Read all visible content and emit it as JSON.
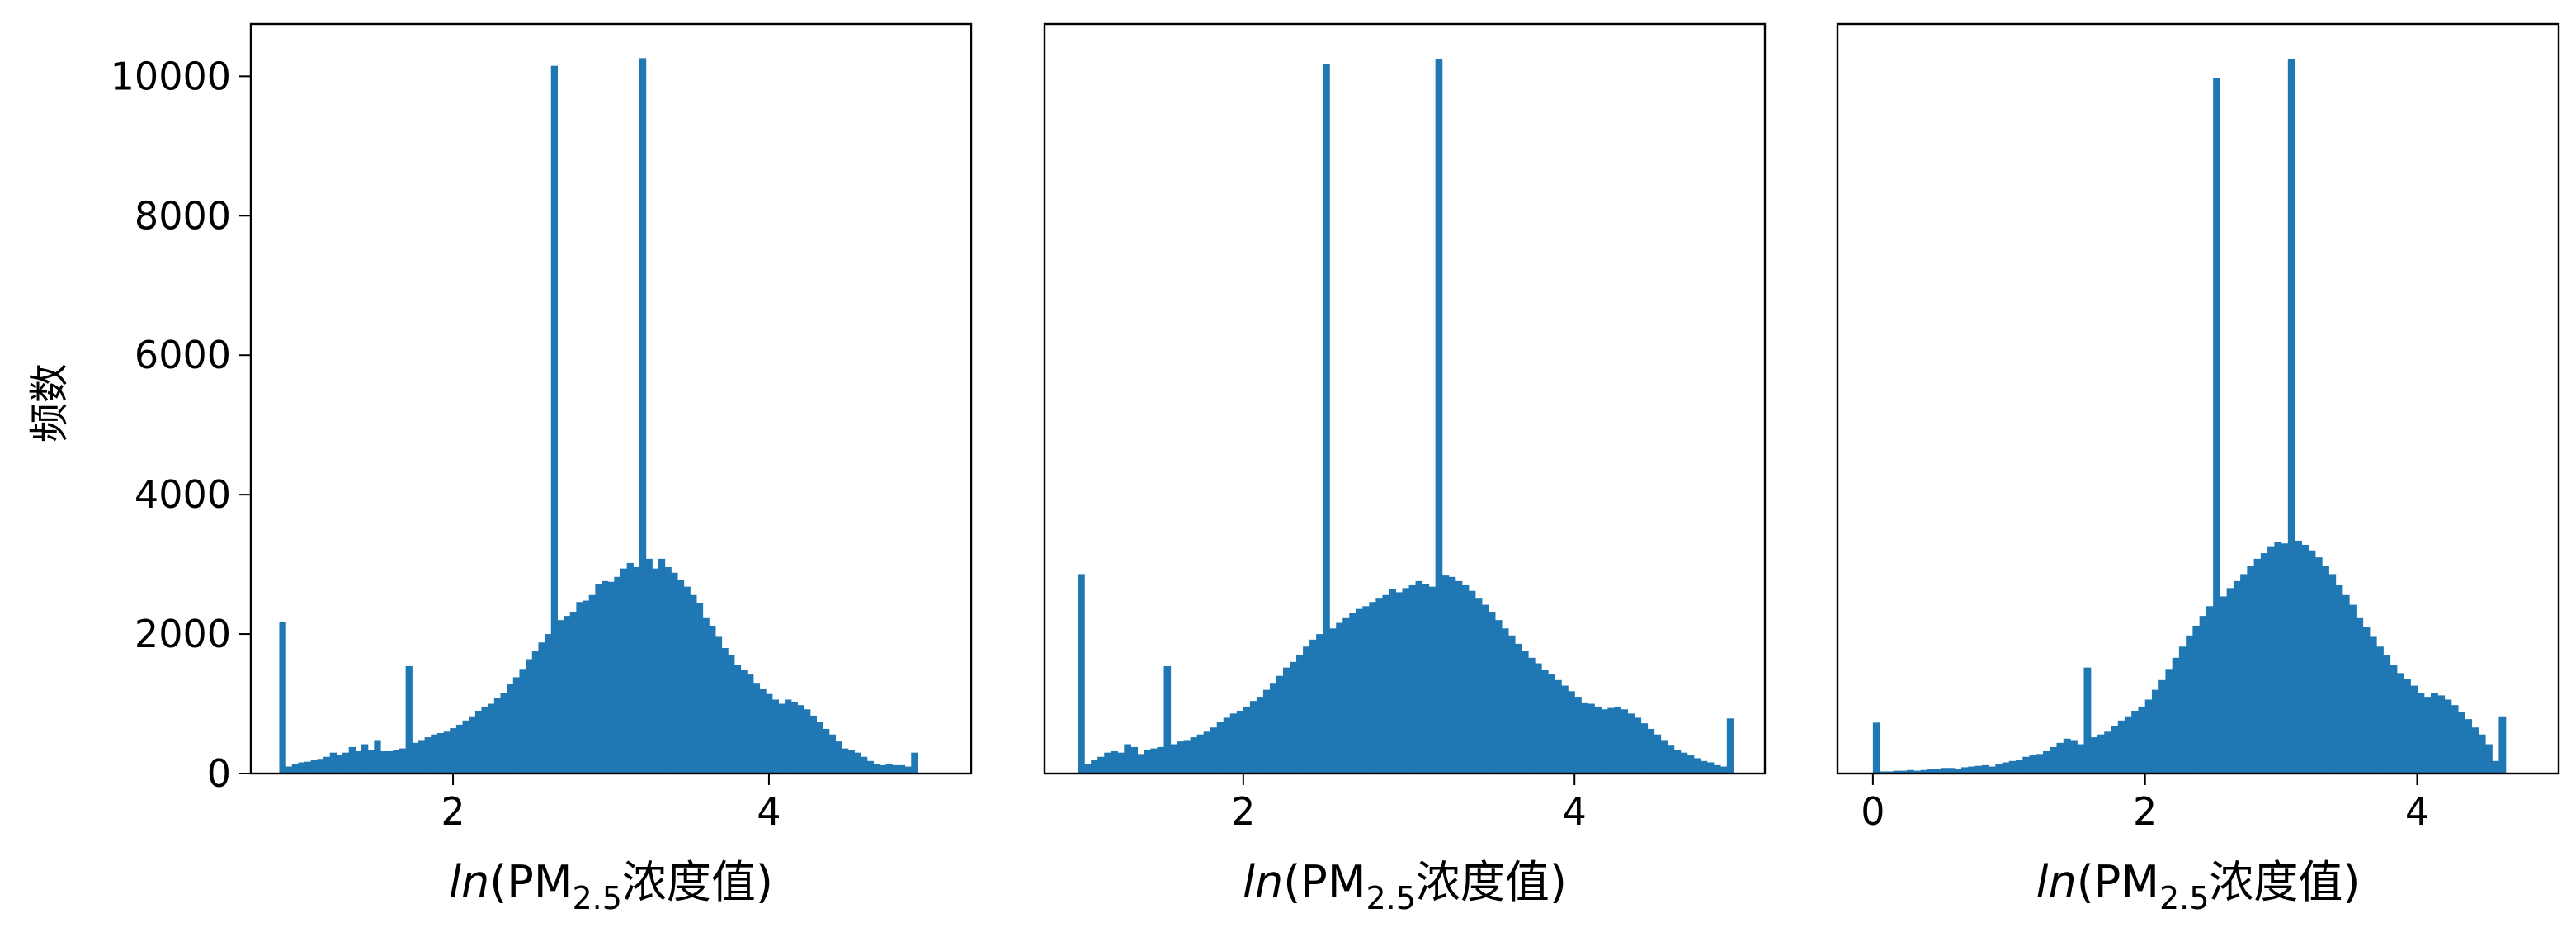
{
  "figure": {
    "ylabel": "频数",
    "bar_color": "#1f77b4"
  },
  "chart_data": [
    {
      "type": "bar",
      "title": "",
      "xlabel": {
        "prefix": "ln",
        "main": "(PM",
        "sub": "2.5",
        "suffix": "浓度值)"
      },
      "ylabel": "频数",
      "xlim": [
        0.72,
        5.28
      ],
      "ylim": [
        0,
        10750
      ],
      "xticks": [
        2,
        4
      ],
      "yticks": [
        0,
        2000,
        4000,
        6000,
        8000,
        10000
      ],
      "show_yticks": true,
      "grid": false,
      "bin_start": 0.9,
      "bin_width": 0.04,
      "values": [
        2170,
        100,
        140,
        160,
        170,
        190,
        210,
        240,
        300,
        260,
        300,
        380,
        320,
        420,
        340,
        480,
        320,
        320,
        340,
        360,
        1540,
        440,
        480,
        520,
        560,
        580,
        600,
        650,
        700,
        760,
        820,
        900,
        960,
        1000,
        1080,
        1160,
        1280,
        1380,
        1500,
        1640,
        1760,
        1880,
        2000,
        10150,
        2200,
        2260,
        2320,
        2460,
        2480,
        2560,
        2720,
        2760,
        2750,
        2820,
        2940,
        3020,
        2960,
        10260,
        3080,
        2940,
        3080,
        2960,
        2880,
        2780,
        2680,
        2560,
        2440,
        2240,
        2120,
        1960,
        1800,
        1700,
        1560,
        1480,
        1420,
        1300,
        1220,
        1140,
        1060,
        1000,
        1060,
        1030,
        980,
        920,
        830,
        740,
        640,
        560,
        460,
        360,
        340,
        300,
        240,
        180,
        140,
        120,
        140,
        120,
        120,
        100,
        300
      ]
    },
    {
      "type": "bar",
      "title": "",
      "xlabel": {
        "prefix": "ln",
        "main": "(PM",
        "sub": "2.5",
        "suffix": "浓度值)"
      },
      "ylabel": "",
      "xlim": [
        0.8,
        5.15
      ],
      "ylim": [
        0,
        10750
      ],
      "xticks": [
        2,
        4
      ],
      "yticks": [
        0,
        2000,
        4000,
        6000,
        8000,
        10000
      ],
      "show_yticks": false,
      "grid": false,
      "bin_start": 1.0,
      "bin_width": 0.04,
      "values": [
        2860,
        140,
        200,
        240,
        300,
        320,
        300,
        420,
        380,
        280,
        340,
        360,
        380,
        1540,
        420,
        460,
        480,
        520,
        560,
        600,
        660,
        740,
        800,
        860,
        900,
        960,
        1040,
        1100,
        1200,
        1300,
        1400,
        1520,
        1600,
        1700,
        1820,
        1920,
        2000,
        10180,
        2080,
        2160,
        2240,
        2300,
        2360,
        2400,
        2460,
        2520,
        2560,
        2640,
        2600,
        2660,
        2700,
        2760,
        2720,
        2680,
        10250,
        2840,
        2820,
        2760,
        2700,
        2620,
        2520,
        2420,
        2320,
        2200,
        2080,
        1980,
        1860,
        1760,
        1660,
        1580,
        1480,
        1420,
        1340,
        1260,
        1180,
        1100,
        1020,
        1000,
        960,
        920,
        940,
        960,
        920,
        860,
        800,
        720,
        640,
        560,
        480,
        400,
        340,
        300,
        260,
        220,
        180,
        160,
        120,
        100,
        790
      ]
    },
    {
      "type": "bar",
      "title": "",
      "xlabel": {
        "prefix": "ln",
        "main": "(PM",
        "sub": "2.5",
        "suffix": "浓度值)"
      },
      "ylabel": "",
      "xlim": [
        -0.26,
        5.04
      ],
      "ylim": [
        0,
        10750
      ],
      "xticks": [
        0,
        2,
        4
      ],
      "yticks": [
        0,
        2000,
        4000,
        6000,
        8000,
        10000
      ],
      "show_yticks": false,
      "grid": false,
      "bin_start": 0.0,
      "bin_width": 0.05,
      "values": [
        730,
        30,
        30,
        40,
        40,
        50,
        40,
        50,
        60,
        70,
        80,
        80,
        70,
        90,
        100,
        110,
        120,
        100,
        140,
        160,
        180,
        200,
        240,
        260,
        280,
        320,
        380,
        440,
        500,
        480,
        420,
        1520,
        520,
        560,
        600,
        680,
        760,
        820,
        900,
        960,
        1060,
        1200,
        1340,
        1500,
        1660,
        1820,
        1980,
        2120,
        2260,
        2400,
        9980,
        2540,
        2660,
        2760,
        2860,
        2980,
        3080,
        3160,
        3260,
        3320,
        3300,
        10250,
        3340,
        3280,
        3200,
        3100,
        2980,
        2860,
        2700,
        2560,
        2420,
        2240,
        2100,
        1960,
        1820,
        1700,
        1560,
        1440,
        1360,
        1260,
        1160,
        1100,
        1160,
        1120,
        1060,
        980,
        880,
        780,
        660,
        560,
        420,
        180,
        820
      ]
    }
  ]
}
